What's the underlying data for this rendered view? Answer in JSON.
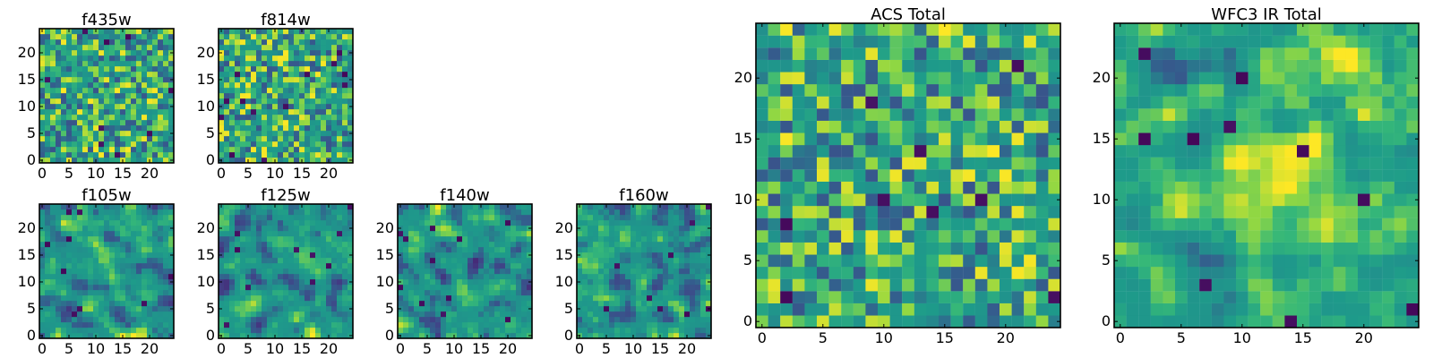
{
  "figure": {
    "cmap": "viridis",
    "colors": {
      "low": "#440154",
      "mid": "#21918c",
      "high": "#fde725",
      "axis": "#000000"
    }
  },
  "chart_data": [
    {
      "type": "heatmap",
      "title": "f435w",
      "xlabel": "",
      "ylabel": "",
      "xlim": [
        0,
        24
      ],
      "ylim": [
        0,
        24
      ],
      "xticks": [
        0,
        5,
        10,
        15,
        20
      ],
      "yticks": [
        0,
        5,
        10,
        15,
        20
      ],
      "grid_size": [
        25,
        25
      ],
      "seed": 435,
      "stat_kind": "noise",
      "dark_pixel_count": 10
    },
    {
      "type": "heatmap",
      "title": "f814w",
      "xlabel": "",
      "ylabel": "",
      "xlim": [
        0,
        24
      ],
      "ylim": [
        0,
        24
      ],
      "xticks": [
        0,
        5,
        10,
        15,
        20
      ],
      "yticks": [
        0,
        5,
        10,
        15,
        20
      ],
      "grid_size": [
        25,
        25
      ],
      "seed": 814,
      "stat_kind": "noise",
      "dark_pixel_count": 14
    },
    {
      "type": "heatmap",
      "title": "f105w",
      "xlabel": "",
      "ylabel": "",
      "xlim": [
        0,
        24
      ],
      "ylim": [
        0,
        24
      ],
      "xticks": [
        0,
        5,
        10,
        15,
        20
      ],
      "yticks": [
        0,
        5,
        10,
        15,
        20
      ],
      "grid_size": [
        25,
        25
      ],
      "seed": 105,
      "stat_kind": "correlated",
      "dark_pixel_count": 9
    },
    {
      "type": "heatmap",
      "title": "f125w",
      "xlabel": "",
      "ylabel": "",
      "xlim": [
        0,
        24
      ],
      "ylim": [
        0,
        24
      ],
      "xticks": [
        0,
        5,
        10,
        15,
        20
      ],
      "yticks": [
        0,
        5,
        10,
        15,
        20
      ],
      "grid_size": [
        25,
        25
      ],
      "seed": 125,
      "stat_kind": "correlated",
      "dark_pixel_count": 10
    },
    {
      "type": "heatmap",
      "title": "f140w",
      "xlabel": "",
      "ylabel": "",
      "xlim": [
        0,
        24
      ],
      "ylim": [
        0,
        24
      ],
      "xticks": [
        0,
        5,
        10,
        15,
        20
      ],
      "yticks": [
        0,
        5,
        10,
        15,
        20
      ],
      "grid_size": [
        25,
        25
      ],
      "seed": 140,
      "stat_kind": "correlated",
      "dark_pixel_count": 11
    },
    {
      "type": "heatmap",
      "title": "f160w",
      "xlabel": "",
      "ylabel": "",
      "xlim": [
        0,
        24
      ],
      "ylim": [
        0,
        24
      ],
      "xticks": [
        0,
        5,
        10,
        15,
        20
      ],
      "yticks": [
        0,
        5,
        10,
        15,
        20
      ],
      "grid_size": [
        25,
        25
      ],
      "seed": 160,
      "stat_kind": "correlated",
      "dark_pixel_count": 9
    },
    {
      "type": "heatmap",
      "title": "ACS Total",
      "xlabel": "",
      "ylabel": "",
      "xlim": [
        0,
        24
      ],
      "ylim": [
        0,
        24
      ],
      "xticks": [
        0,
        5,
        10,
        15,
        20
      ],
      "yticks": [
        0,
        5,
        10,
        15,
        20
      ],
      "grid_size": [
        25,
        25
      ],
      "seed": 2021,
      "stat_kind": "noise",
      "dark_pixel_count": 11
    },
    {
      "type": "heatmap",
      "title": "WFC3 IR Total",
      "xlabel": "",
      "ylabel": "",
      "xlim": [
        0,
        24
      ],
      "ylim": [
        0,
        24
      ],
      "xticks": [
        0,
        5,
        10,
        15,
        20
      ],
      "yticks": [
        0,
        5,
        10,
        15,
        20
      ],
      "grid_size": [
        25,
        25
      ],
      "seed": 3030,
      "stat_kind": "source",
      "dark_pixel_count": 10
    }
  ]
}
